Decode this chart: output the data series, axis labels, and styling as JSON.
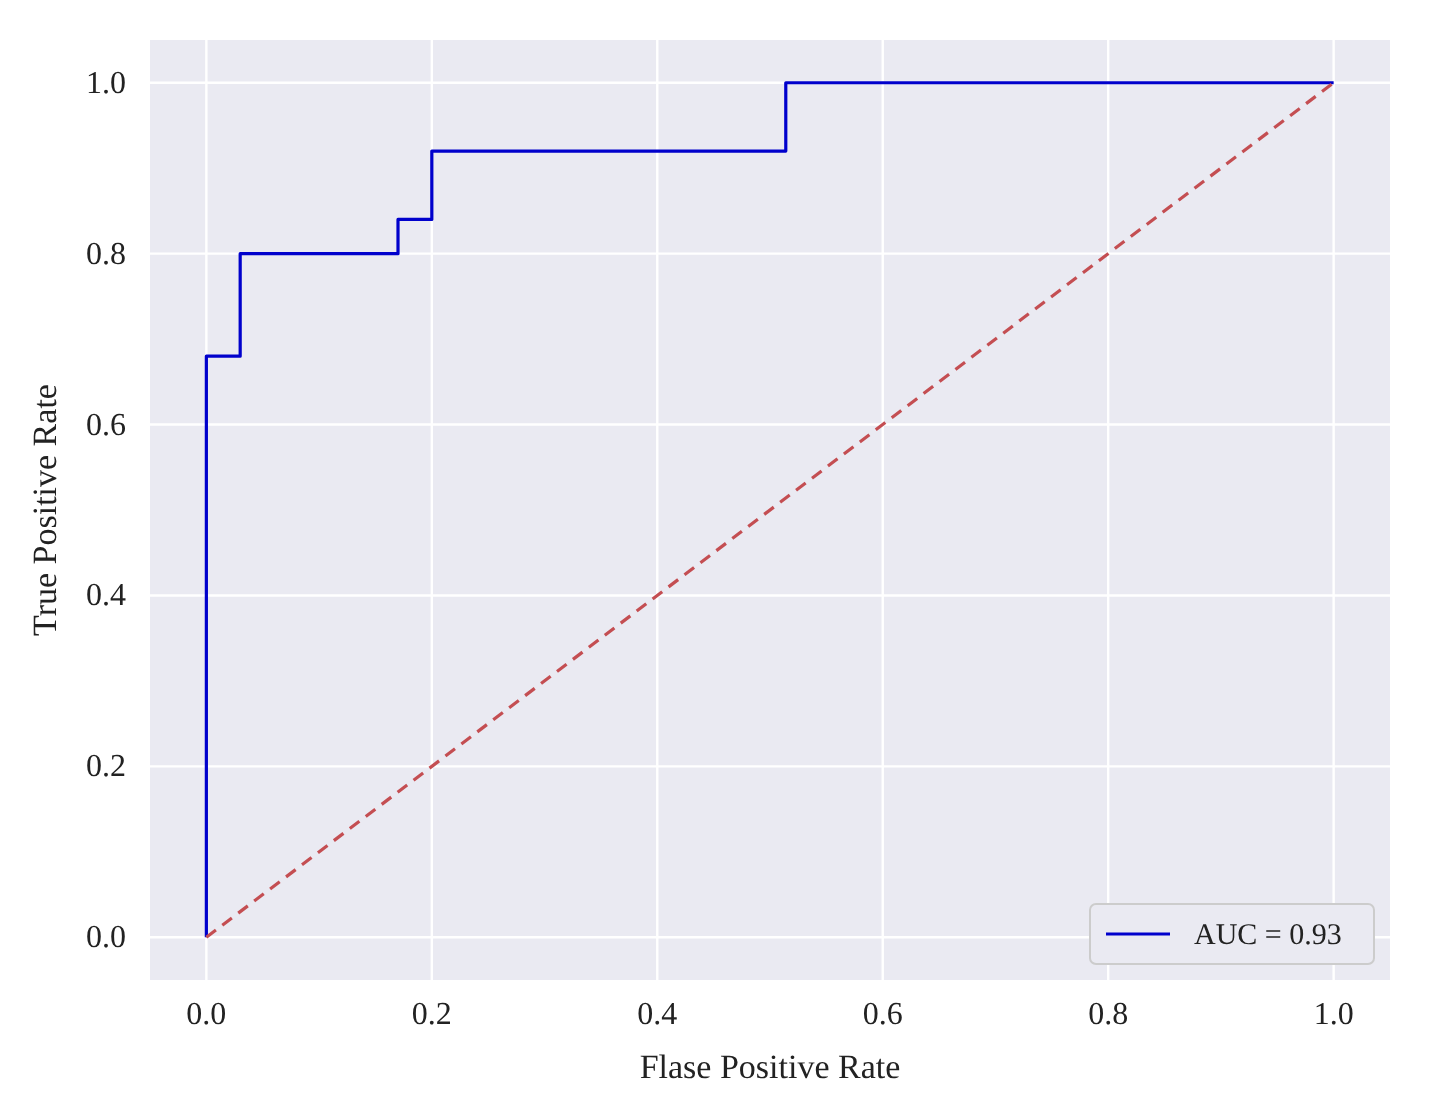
{
  "chart_data": {
    "type": "line",
    "xlabel": "Flase Positive Rate",
    "ylabel": "True Positive Rate",
    "xlim": [
      -0.05,
      1.05
    ],
    "ylim": [
      -0.05,
      1.05
    ],
    "xticks": [
      {
        "value": 0,
        "label": "0.0"
      },
      {
        "value": 0.2,
        "label": "0.2"
      },
      {
        "value": 0.4,
        "label": "0.4"
      },
      {
        "value": 0.6,
        "label": "0.6"
      },
      {
        "value": 0.8,
        "label": "0.8"
      },
      {
        "value": 1,
        "label": "1.0"
      }
    ],
    "yticks": [
      {
        "value": 0,
        "label": "0.0"
      },
      {
        "value": 0.2,
        "label": "0.2"
      },
      {
        "value": 0.4,
        "label": "0.4"
      },
      {
        "value": 0.6,
        "label": "0.6"
      },
      {
        "value": 0.8,
        "label": "0.8"
      },
      {
        "value": 1,
        "label": "1.0"
      }
    ],
    "grid": true,
    "legend": "bottom right",
    "series": [
      {
        "name": "AUC = 0.93",
        "color": "#0000cc",
        "line_style": "solid",
        "x": [
          0,
          0,
          0.03,
          0.03,
          0.17,
          0.17,
          0.2,
          0.2,
          0.514,
          0.514,
          1
        ],
        "values": [
          0,
          0.68,
          0.68,
          0.8,
          0.8,
          0.84,
          0.84,
          0.92,
          0.92,
          1,
          1
        ]
      },
      {
        "color": "#c44e52",
        "line_style": "dashed",
        "x": [
          0,
          1
        ],
        "values": [
          0,
          1
        ]
      }
    ]
  }
}
